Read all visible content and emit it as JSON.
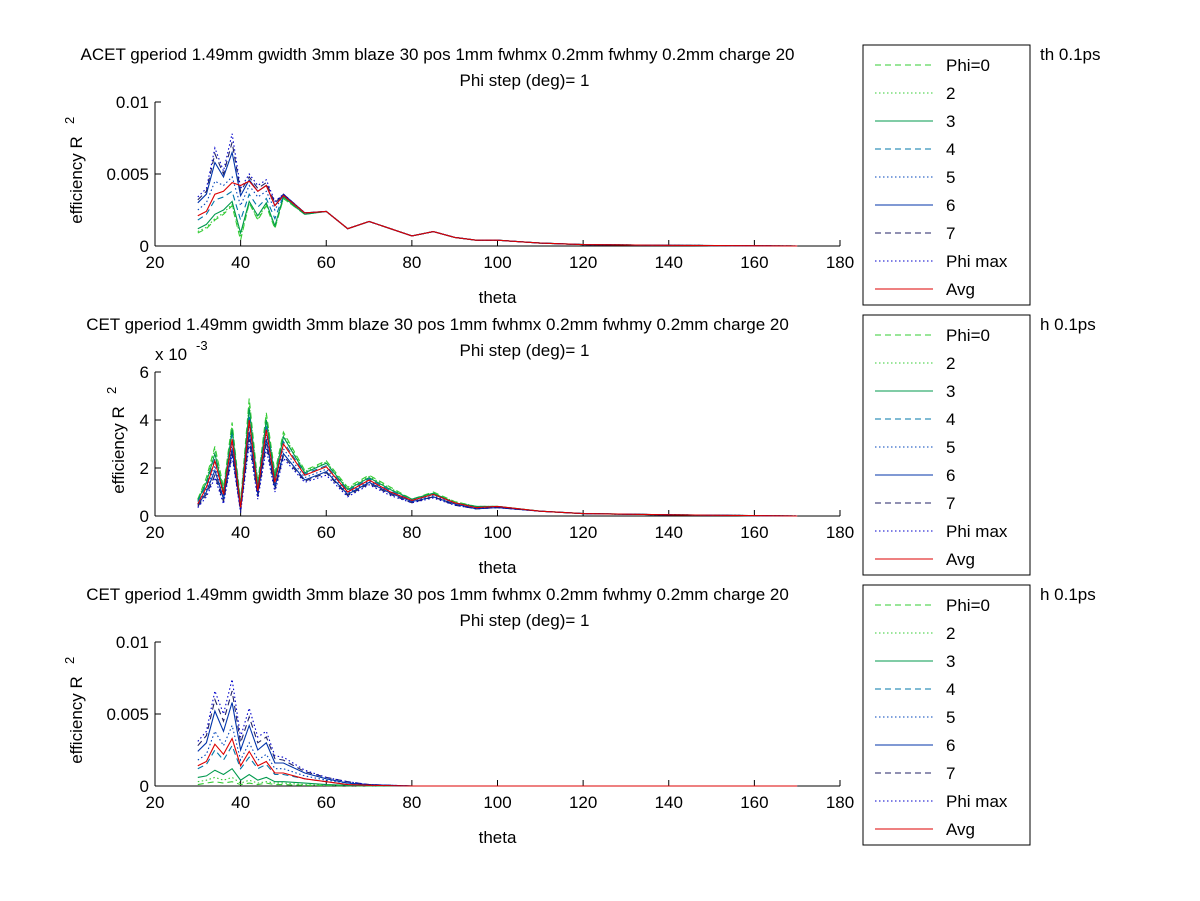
{
  "figure": {
    "background": "#ffffff",
    "series_styles": [
      {
        "name": "Phi=0",
        "color": "#33cc33",
        "dash": "dashed"
      },
      {
        "name": "2",
        "color": "#33cc33",
        "dash": "dotted"
      },
      {
        "name": "3",
        "color": "#00994d",
        "dash": "solid"
      },
      {
        "name": "4",
        "color": "#0077aa",
        "dash": "dashed"
      },
      {
        "name": "5",
        "color": "#0044bb",
        "dash": "dotted"
      },
      {
        "name": "6",
        "color": "#0033aa",
        "dash": "solid"
      },
      {
        "name": "7",
        "color": "#222266",
        "dash": "dashed"
      },
      {
        "name": "Phi max",
        "color": "#0000cc",
        "dash": "dotted"
      },
      {
        "name": "Avg",
        "color": "#dd0000",
        "dash": "solid"
      }
    ]
  },
  "chart_data": [
    {
      "type": "line",
      "title": "ACET gperiod 1.49mm gwidth 3mm blaze 30 pos 1mm fwhmx 0.2mm fwhmy 0.2mm charge 20",
      "title_tail": "th 0.1ps",
      "subtitle": "Phi step (deg)= 1",
      "xlabel": "theta",
      "ylabel": "efficiency R",
      "ylabel_sup": "2",
      "xlim": [
        20,
        180
      ],
      "ylim": [
        0,
        0.01
      ],
      "xticks": [
        20,
        40,
        60,
        80,
        100,
        120,
        140,
        160,
        180
      ],
      "yticks": [
        0,
        0.005,
        0.01
      ],
      "ytick_labels": [
        "0",
        "0.005",
        "0.01"
      ],
      "exponent_label": "",
      "legend": [
        "Phi=0",
        "2",
        "3",
        "4",
        "5",
        "6",
        "7",
        "Phi max",
        "Avg"
      ],
      "legend_position": "right",
      "x": [
        30,
        32,
        34,
        36,
        38,
        40,
        42,
        44,
        46,
        48,
        50,
        55,
        60,
        65,
        70,
        75,
        80,
        85,
        90,
        95,
        100,
        110,
        120,
        140,
        170
      ],
      "series": [
        {
          "name": "Phi=0",
          "values": [
            0.0009,
            0.0012,
            0.0018,
            0.0022,
            0.0028,
            0.0004,
            0.003,
            0.0018,
            0.0028,
            0.0012,
            0.0033,
            0.0022,
            0.0024,
            0.0012,
            0.0017,
            0.0012,
            0.0007,
            0.001,
            0.0006,
            0.0004,
            0.0004,
            0.0002,
            0.0001,
            5e-05,
            0.0
          ]
        },
        {
          "name": "2",
          "values": [
            0.001,
            0.0013,
            0.0019,
            0.0023,
            0.0029,
            0.0006,
            0.003,
            0.0019,
            0.0029,
            0.0013,
            0.0033,
            0.0022,
            0.0024,
            0.0012,
            0.0017,
            0.0012,
            0.0007,
            0.001,
            0.0006,
            0.0004,
            0.0004,
            0.0002,
            0.0001,
            5e-05,
            0.0
          ]
        },
        {
          "name": "3",
          "values": [
            0.0012,
            0.0015,
            0.0022,
            0.0025,
            0.0031,
            0.0009,
            0.0031,
            0.0021,
            0.003,
            0.0014,
            0.0034,
            0.0022,
            0.0024,
            0.0012,
            0.0017,
            0.0012,
            0.0007,
            0.001,
            0.0006,
            0.0004,
            0.0004,
            0.0002,
            0.0001,
            5e-05,
            0.0
          ]
        },
        {
          "name": "4",
          "values": [
            0.0018,
            0.0022,
            0.0032,
            0.0034,
            0.0038,
            0.0018,
            0.0036,
            0.0027,
            0.0033,
            0.0019,
            0.0035,
            0.0023,
            0.0024,
            0.0012,
            0.0017,
            0.0012,
            0.0007,
            0.001,
            0.0006,
            0.0004,
            0.0004,
            0.0002,
            0.0001,
            5e-05,
            0.0
          ]
        },
        {
          "name": "5",
          "values": [
            0.0025,
            0.003,
            0.0045,
            0.0042,
            0.0048,
            0.0028,
            0.0042,
            0.0034,
            0.0038,
            0.0025,
            0.0036,
            0.0023,
            0.0024,
            0.0012,
            0.0017,
            0.0012,
            0.0007,
            0.001,
            0.0006,
            0.0004,
            0.0004,
            0.0002,
            0.0001,
            5e-05,
            0.0
          ]
        },
        {
          "name": "6",
          "values": [
            0.003,
            0.0036,
            0.0058,
            0.0048,
            0.0065,
            0.0035,
            0.0046,
            0.0038,
            0.0042,
            0.0028,
            0.0036,
            0.0023,
            0.0024,
            0.0012,
            0.0017,
            0.0012,
            0.0007,
            0.001,
            0.0006,
            0.0004,
            0.0004,
            0.0002,
            0.0001,
            5e-05,
            0.0
          ]
        },
        {
          "name": "7",
          "values": [
            0.0032,
            0.0038,
            0.0064,
            0.005,
            0.0072,
            0.0038,
            0.0048,
            0.004,
            0.0044,
            0.003,
            0.0036,
            0.0023,
            0.0024,
            0.0012,
            0.0017,
            0.0012,
            0.0007,
            0.001,
            0.0006,
            0.0004,
            0.0004,
            0.0002,
            0.0001,
            5e-05,
            0.0
          ]
        },
        {
          "name": "Phi max",
          "values": [
            0.0034,
            0.004,
            0.0068,
            0.0052,
            0.0078,
            0.004,
            0.005,
            0.0042,
            0.0046,
            0.0031,
            0.0036,
            0.0023,
            0.0024,
            0.0012,
            0.0017,
            0.0012,
            0.0007,
            0.001,
            0.0006,
            0.0004,
            0.0004,
            0.0002,
            0.0001,
            5e-05,
            0.0
          ]
        },
        {
          "name": "Avg",
          "values": [
            0.0021,
            0.0024,
            0.0036,
            0.0038,
            0.0044,
            0.0042,
            0.0045,
            0.0038,
            0.0042,
            0.0028,
            0.0035,
            0.0023,
            0.0024,
            0.0012,
            0.0017,
            0.0012,
            0.0007,
            0.001,
            0.0006,
            0.0004,
            0.0004,
            0.0002,
            0.0001,
            5e-05,
            0.0
          ]
        }
      ]
    },
    {
      "type": "line",
      "title": "CET gperiod 1.49mm gwidth 3mm blaze 30 pos 1mm fwhmx 0.2mm fwhmy 0.2mm charge 20",
      "title_tail": "h 0.1ps",
      "subtitle": "Phi step (deg)= 1",
      "xlabel": "theta",
      "ylabel": "efficiency R",
      "ylabel_sup": "2",
      "xlim": [
        20,
        180
      ],
      "ylim": [
        0,
        6
      ],
      "xticks": [
        20,
        40,
        60,
        80,
        100,
        120,
        140,
        160,
        180
      ],
      "yticks": [
        0,
        2,
        4,
        6
      ],
      "ytick_labels": [
        "0",
        "2",
        "4",
        "6"
      ],
      "exponent_label": "x 10",
      "exponent_sup": "-3",
      "legend": [
        "Phi=0",
        "2",
        "3",
        "4",
        "5",
        "6",
        "7",
        "Phi max",
        "Avg"
      ],
      "legend_position": "right",
      "x": [
        30,
        32,
        34,
        36,
        38,
        40,
        42,
        44,
        46,
        48,
        50,
        55,
        60,
        65,
        70,
        75,
        80,
        85,
        90,
        95,
        100,
        110,
        120,
        140,
        170
      ],
      "series": [
        {
          "name": "Phi=0",
          "values": [
            0.7,
            1.6,
            2.9,
            1.2,
            3.9,
            0.6,
            4.9,
            1.4,
            4.3,
            1.8,
            3.5,
            1.9,
            2.3,
            1.2,
            1.7,
            1.2,
            0.7,
            1.0,
            0.6,
            0.4,
            0.4,
            0.2,
            0.1,
            0.05,
            0.0
          ]
        },
        {
          "name": "2",
          "values": [
            0.7,
            1.5,
            2.8,
            1.1,
            3.8,
            0.5,
            4.7,
            1.3,
            4.2,
            1.7,
            3.4,
            1.85,
            2.25,
            1.15,
            1.65,
            1.15,
            0.7,
            0.95,
            0.6,
            0.4,
            0.4,
            0.2,
            0.1,
            0.05,
            0.0
          ]
        },
        {
          "name": "3",
          "values": [
            0.65,
            1.4,
            2.6,
            1.0,
            3.6,
            0.45,
            4.5,
            1.2,
            4.0,
            1.6,
            3.3,
            1.8,
            2.2,
            1.1,
            1.6,
            1.1,
            0.7,
            0.95,
            0.55,
            0.4,
            0.4,
            0.2,
            0.1,
            0.05,
            0.0
          ]
        },
        {
          "name": "4",
          "values": [
            0.6,
            1.3,
            2.4,
            0.9,
            3.4,
            0.4,
            4.2,
            1.1,
            3.8,
            1.5,
            3.1,
            1.75,
            2.1,
            1.05,
            1.55,
            1.05,
            0.65,
            0.9,
            0.55,
            0.35,
            0.4,
            0.2,
            0.1,
            0.05,
            0.0
          ]
        },
        {
          "name": "5",
          "values": [
            0.5,
            1.1,
            2.1,
            0.8,
            3.0,
            0.3,
            3.8,
            1.0,
            3.4,
            1.3,
            2.8,
            1.6,
            1.95,
            0.95,
            1.45,
            1.0,
            0.6,
            0.85,
            0.5,
            0.35,
            0.35,
            0.2,
            0.1,
            0.05,
            0.0
          ]
        },
        {
          "name": "6",
          "values": [
            0.45,
            1.0,
            1.9,
            0.7,
            2.8,
            0.25,
            3.5,
            0.9,
            3.2,
            1.2,
            2.6,
            1.5,
            1.85,
            0.9,
            1.4,
            0.95,
            0.6,
            0.8,
            0.5,
            0.3,
            0.35,
            0.2,
            0.1,
            0.05,
            0.0
          ]
        },
        {
          "name": "7",
          "values": [
            0.4,
            0.9,
            1.7,
            0.6,
            2.6,
            0.2,
            3.2,
            0.8,
            3.0,
            1.1,
            2.5,
            1.45,
            1.8,
            0.85,
            1.35,
            0.9,
            0.55,
            0.8,
            0.45,
            0.3,
            0.35,
            0.2,
            0.1,
            0.05,
            0.0
          ]
        },
        {
          "name": "Phi max",
          "values": [
            0.35,
            0.8,
            1.6,
            0.5,
            2.5,
            0.15,
            3.0,
            0.7,
            2.8,
            1.0,
            2.4,
            1.4,
            1.7,
            0.8,
            1.3,
            0.85,
            0.55,
            0.75,
            0.45,
            0.3,
            0.35,
            0.2,
            0.1,
            0.05,
            0.0
          ]
        },
        {
          "name": "Avg",
          "values": [
            0.5,
            1.2,
            2.3,
            0.9,
            3.2,
            0.35,
            4.0,
            1.05,
            3.6,
            1.4,
            3.0,
            1.7,
            2.05,
            1.0,
            1.5,
            1.0,
            0.65,
            0.9,
            0.55,
            0.35,
            0.4,
            0.2,
            0.1,
            0.05,
            0.0
          ]
        }
      ]
    },
    {
      "type": "line",
      "title": "CET gperiod 1.49mm gwidth 3mm blaze 30 pos 1mm fwhmx 0.2mm fwhmy 0.2mm charge 20",
      "title_tail": "h 0.1ps",
      "subtitle": "Phi step (deg)= 1",
      "xlabel": "theta",
      "ylabel": "efficiency R",
      "ylabel_sup": "2",
      "xlim": [
        20,
        180
      ],
      "ylim": [
        0,
        0.01
      ],
      "xticks": [
        20,
        40,
        60,
        80,
        100,
        120,
        140,
        160,
        180
      ],
      "yticks": [
        0,
        0.005,
        0.01
      ],
      "ytick_labels": [
        "0",
        "0.005",
        "0.01"
      ],
      "exponent_label": "",
      "legend": [
        "Phi=0",
        "2",
        "3",
        "4",
        "5",
        "6",
        "7",
        "Phi max",
        "Avg"
      ],
      "legend_position": "right",
      "x": [
        30,
        32,
        34,
        36,
        38,
        40,
        42,
        44,
        46,
        48,
        50,
        55,
        60,
        65,
        70,
        80,
        100,
        120,
        140,
        170
      ],
      "series": [
        {
          "name": "Phi=0",
          "values": [
            0.0001,
            0.0002,
            0.0003,
            0.0002,
            0.0003,
            0.0001,
            0.0002,
            0.0001,
            0.0002,
            0.0001,
            0.0001,
            5e-05,
            3e-05,
            2e-05,
            1e-05,
            0.0,
            0.0,
            0.0,
            0.0,
            0.0
          ]
        },
        {
          "name": "2",
          "values": [
            0.0003,
            0.0004,
            0.0006,
            0.0004,
            0.0006,
            0.0002,
            0.0004,
            0.0002,
            0.0003,
            0.0002,
            0.0002,
            0.0001,
            5e-05,
            3e-05,
            1e-05,
            0.0,
            0.0,
            0.0,
            0.0,
            0.0
          ]
        },
        {
          "name": "3",
          "values": [
            0.0006,
            0.0007,
            0.0011,
            0.0008,
            0.0012,
            0.0004,
            0.0008,
            0.0004,
            0.0006,
            0.0003,
            0.0003,
            0.0002,
            0.0001,
            5e-05,
            2e-05,
            0.0,
            0.0,
            0.0,
            0.0,
            0.0
          ]
        },
        {
          "name": "4",
          "values": [
            0.0012,
            0.0015,
            0.0025,
            0.0018,
            0.0028,
            0.0012,
            0.002,
            0.0012,
            0.0015,
            0.0008,
            0.0008,
            0.0005,
            0.0003,
            0.0001,
            5e-05,
            0.0,
            0.0,
            0.0,
            0.0,
            0.0
          ]
        },
        {
          "name": "5",
          "values": [
            0.0018,
            0.0022,
            0.0038,
            0.0028,
            0.0042,
            0.0018,
            0.003,
            0.0018,
            0.0022,
            0.0012,
            0.0012,
            0.0007,
            0.0004,
            0.0002,
            0.0001,
            0.0,
            0.0,
            0.0,
            0.0,
            0.0
          ]
        },
        {
          "name": "6",
          "values": [
            0.0024,
            0.003,
            0.0052,
            0.0038,
            0.0058,
            0.0025,
            0.0042,
            0.0025,
            0.003,
            0.0016,
            0.0016,
            0.0009,
            0.0005,
            0.0002,
            0.0001,
            0.0,
            0.0,
            0.0,
            0.0,
            0.0
          ]
        },
        {
          "name": "7",
          "values": [
            0.0028,
            0.0035,
            0.006,
            0.0045,
            0.0066,
            0.003,
            0.0048,
            0.003,
            0.0034,
            0.0019,
            0.0018,
            0.001,
            0.0006,
            0.0003,
            0.0001,
            0.0,
            0.0,
            0.0,
            0.0,
            0.0
          ]
        },
        {
          "name": "Phi max",
          "values": [
            0.0031,
            0.0038,
            0.0066,
            0.005,
            0.0074,
            0.0034,
            0.0054,
            0.0034,
            0.0038,
            0.0021,
            0.002,
            0.0011,
            0.0006,
            0.0003,
            0.0001,
            0.0,
            0.0,
            0.0,
            0.0,
            0.0
          ]
        },
        {
          "name": "Avg",
          "values": [
            0.0014,
            0.0017,
            0.0029,
            0.0022,
            0.0033,
            0.0014,
            0.0024,
            0.0014,
            0.0017,
            0.0009,
            0.0009,
            0.0005,
            0.0003,
            0.0001,
            5e-05,
            0.0,
            0.0,
            0.0,
            0.0,
            0.0
          ]
        }
      ]
    }
  ]
}
